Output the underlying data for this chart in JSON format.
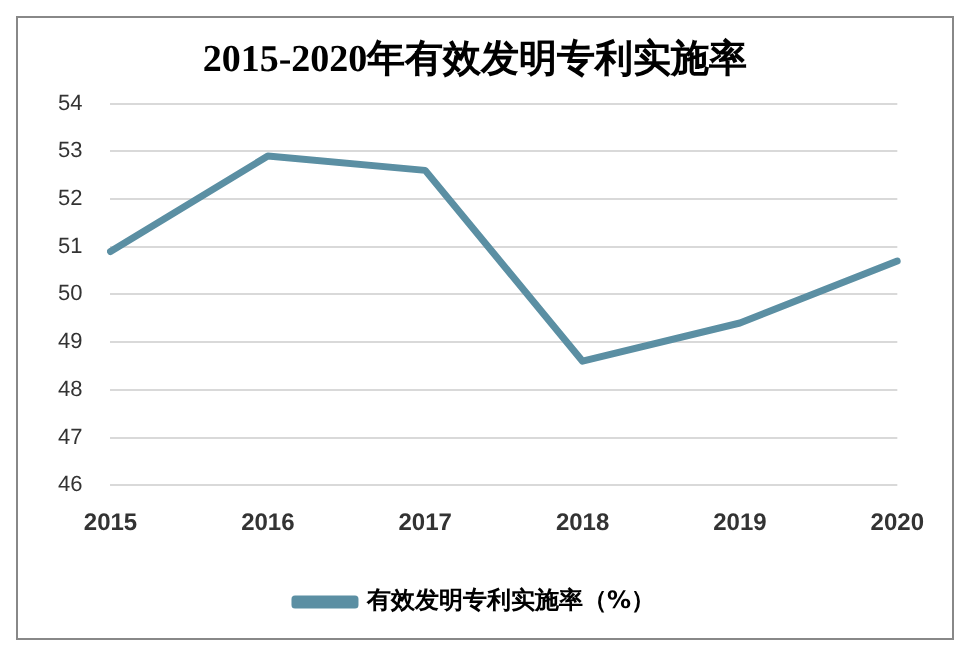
{
  "chart_data": {
    "type": "line",
    "title": "2015-2020年有效发明专利实施率",
    "categories": [
      "2015",
      "2016",
      "2017",
      "2018",
      "2019",
      "2020"
    ],
    "series": [
      {
        "name": "有效发明专利实施率（%）",
        "color": "#5b8fa3",
        "values": [
          50.9,
          52.9,
          52.6,
          48.6,
          49.4,
          50.7
        ]
      }
    ],
    "ylim": [
      46,
      54
    ],
    "yticks": [
      46,
      47,
      48,
      49,
      50,
      51,
      52,
      53,
      54
    ],
    "grid": "y",
    "legend": "bottom",
    "marker": "none"
  }
}
